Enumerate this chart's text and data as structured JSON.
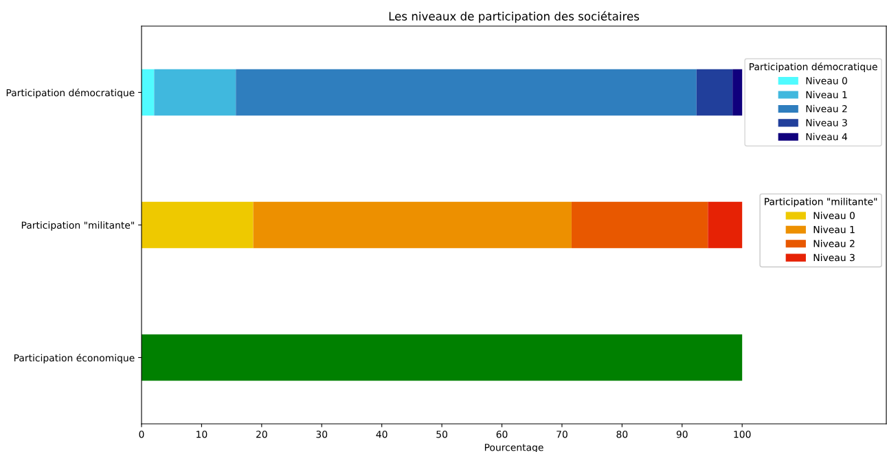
{
  "chart_data": {
    "type": "bar",
    "orientation": "horizontal",
    "stacked": true,
    "title": "Les niveaux de participation des sociétaires",
    "xlabel": "Pourcentage",
    "categories": [
      "Participation démocratique",
      "Participation \"militante\"",
      "Participation économique"
    ],
    "legend": "right",
    "legend_title": [
      "Participation démocratique",
      "Participation \"militante\""
    ],
    "xlim": [
      0,
      124
    ],
    "xticks": [
      0,
      10,
      20,
      30,
      40,
      50,
      60,
      70,
      80,
      90,
      100
    ],
    "grid": false,
    "series": [
      {
        "name": "Niveau 0",
        "color": "#50fbff",
        "values": [
          2.1,
          null,
          null
        ]
      },
      {
        "name": "Niveau 1",
        "color": "#40b8de",
        "values": [
          13.6,
          null,
          null
        ]
      },
      {
        "name": "Niveau 2",
        "color": "#2f7ebe",
        "values": [
          76.7,
          null,
          null
        ]
      },
      {
        "name": "Niveau 3",
        "color": "#213f9b",
        "values": [
          6.0,
          null,
          null
        ]
      },
      {
        "name": "Niveau 4",
        "color": "#10007d",
        "values": [
          1.6,
          null,
          null
        ]
      },
      {
        "name": "Niveau 0",
        "color": "#eec900",
        "values": [
          null,
          18.6,
          null
        ]
      },
      {
        "name": "Niveau 1",
        "color": "#ed9000",
        "values": [
          null,
          53.0,
          null
        ]
      },
      {
        "name": "Niveau 2",
        "color": "#e85800",
        "values": [
          null,
          22.7,
          null
        ]
      },
      {
        "name": "Niveau 3",
        "color": "#e62205",
        "values": [
          null,
          5.7,
          null
        ]
      },
      {
        "color": "#008000",
        "values": [
          null,
          null,
          100
        ]
      }
    ]
  }
}
